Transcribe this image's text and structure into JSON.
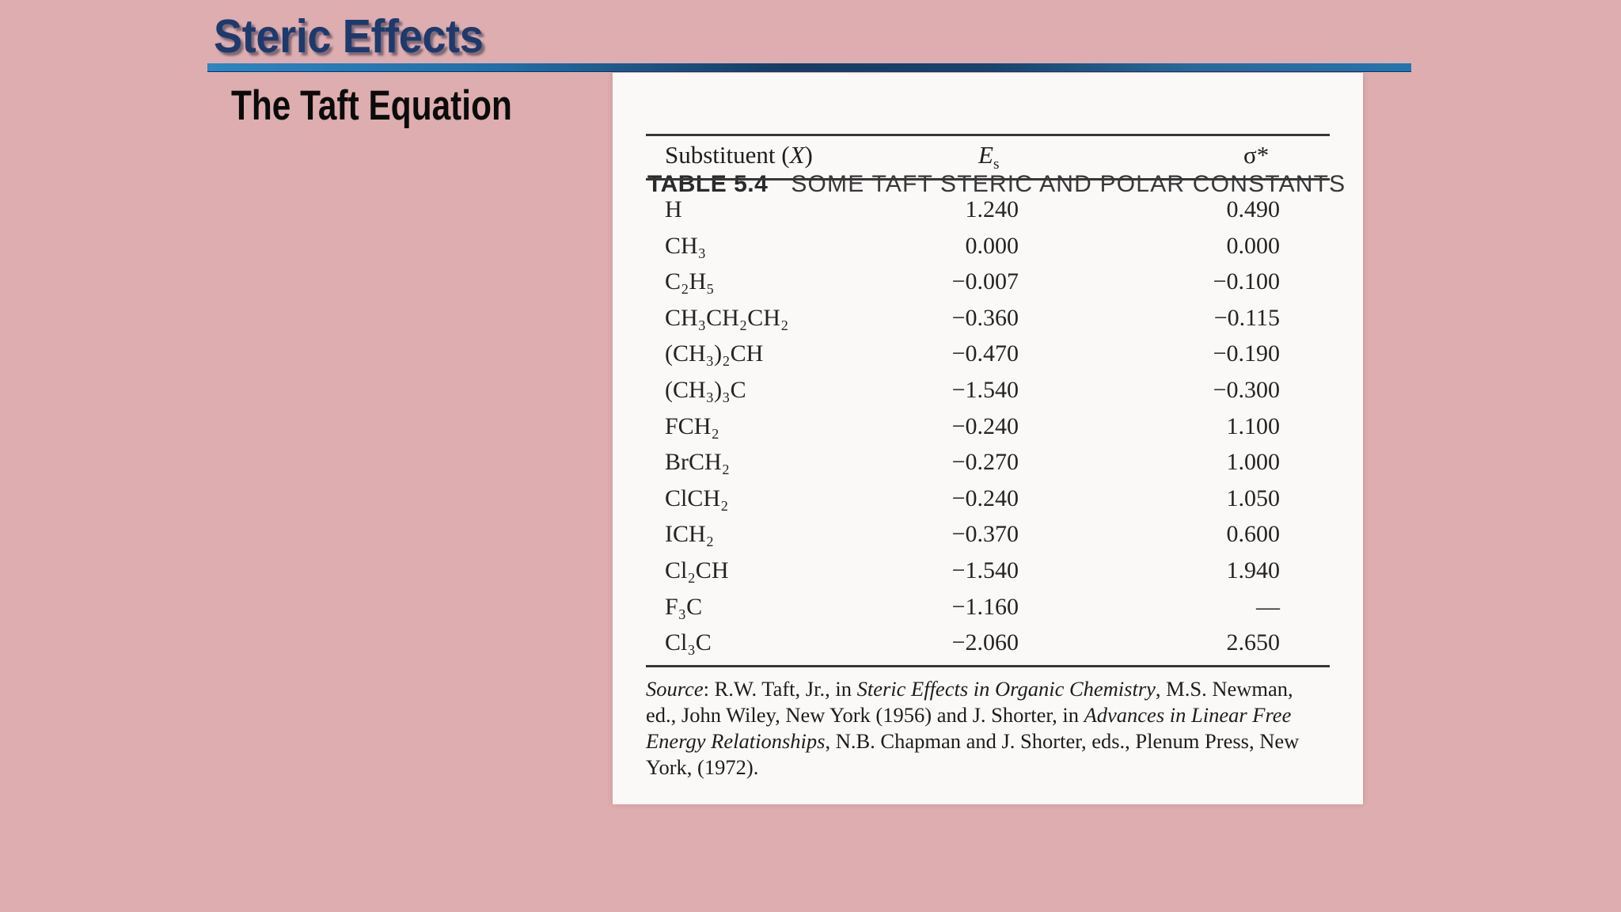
{
  "slide": {
    "title": "Steric Effects",
    "subtitle": "The Taft Equation",
    "colors": {
      "background_pink": "#deadaf",
      "title_navy": "#1e3a6c",
      "underline_blue": "#1d6ea9",
      "table_paper": "#fbf9f8",
      "table_text": "#242424"
    }
  },
  "table_image": {
    "caption_label": "TABLE 5.4",
    "caption_title": "SOME TAFT STERIC AND POLAR CONSTANTS",
    "columns": {
      "substituent_prefix": "Substituent (",
      "substituent_x": "X",
      "substituent_suffix": ")",
      "es_main": "E",
      "es_sub": "s",
      "sigma": "σ*"
    },
    "rows": [
      {
        "x": "H",
        "es": "1.240",
        "sigma": "0.490"
      },
      {
        "x": "CH₃",
        "es": "0.000",
        "sigma": "0.000"
      },
      {
        "x": "C₂H₅",
        "es": "−0.007",
        "sigma": "−0.100"
      },
      {
        "x": "CH₃CH₂CH₂",
        "es": "−0.360",
        "sigma": "−0.115"
      },
      {
        "x": "(CH₃)₂CH",
        "es": "−0.470",
        "sigma": "−0.190"
      },
      {
        "x": "(CH₃)₃C",
        "es": "−1.540",
        "sigma": "−0.300"
      },
      {
        "x": "FCH₂",
        "es": "−0.240",
        "sigma": "1.100"
      },
      {
        "x": "BrCH₂",
        "es": "−0.270",
        "sigma": "1.000"
      },
      {
        "x": "ClCH₂",
        "es": "−0.240",
        "sigma": "1.050"
      },
      {
        "x": "ICH₂",
        "es": "−0.370",
        "sigma": "0.600"
      },
      {
        "x": "Cl₂CH",
        "es": "−1.540",
        "sigma": "1.940"
      },
      {
        "x": "F₃C",
        "es": "−1.160",
        "sigma": "—"
      },
      {
        "x": "Cl₃C",
        "es": "−2.060",
        "sigma": "2.650"
      }
    ],
    "source": {
      "line1_label": "Source",
      "line1_a": ": R.W. Taft, Jr., in ",
      "line1_title": "Steric Effects in Organic Chemistry",
      "line1_b": ", M.S. Newman,",
      "line2_a": "ed., John Wiley, New York (1956) and J. Shorter, in ",
      "line2_title": "Advances in Linear Free",
      "line3_title": "Energy Relationships",
      "line3_a": ", N.B. Chapman and J. Shorter, eds., Plenum Press, New",
      "line4": "York, (1972)."
    }
  }
}
